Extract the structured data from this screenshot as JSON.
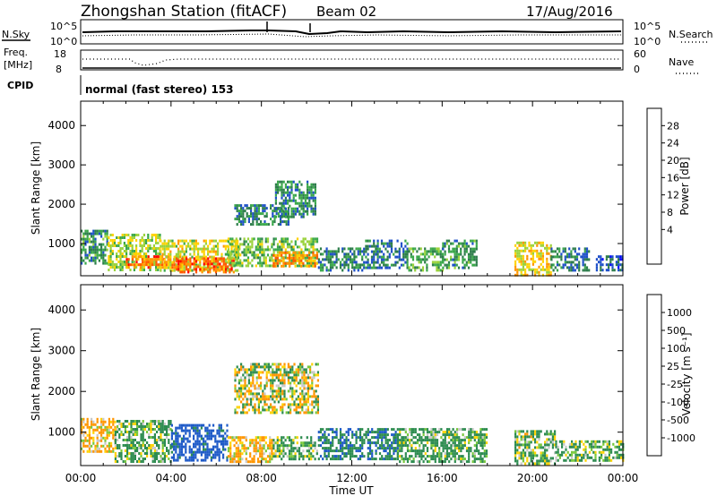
{
  "header": {
    "station": "Zhongshan Station (fitACF)",
    "beam": "Beam 02",
    "date": "17/Aug/2016"
  },
  "top_panels": {
    "nsky_label": "N.Sky",
    "nsky_ticks": [
      "10^5",
      "10^0"
    ],
    "nsearch_label": "N.Search",
    "nsearch_ticks": [
      "10^5",
      "10^0"
    ],
    "freq_label_1": "Freq.",
    "freq_label_2": "[MHz]",
    "freq_ticks": [
      "18",
      "8"
    ],
    "nave_label": "Nave",
    "nave_ticks": [
      "60",
      "0"
    ],
    "cpid_label": "CPID",
    "cpid_text": "normal (fast stereo) 153"
  },
  "chart_data": [
    {
      "type": "heatmap",
      "name": "power-panel",
      "ylabel": "Slant Range [km]",
      "xlabel": "",
      "ylim": [
        180,
        4620
      ],
      "xlim": [
        0,
        24
      ],
      "yticks": [
        "4000",
        "3000",
        "2000",
        "1000"
      ],
      "yticks_values": [
        4000,
        3000,
        2000,
        1000
      ],
      "colorbar": {
        "label": "Power [dB]",
        "ticks": [
          "28",
          "24",
          "20",
          "16",
          "12",
          "8",
          "4"
        ],
        "colors": [
          "#0000ff",
          "#1e50c8",
          "#2d7d4b",
          "#3aa84a",
          "#9bd23c",
          "#ffd200",
          "#ff9600",
          "#ff5a00",
          "#ff0000"
        ]
      },
      "regions": [
        {
          "t0": 0.0,
          "t1": 1.2,
          "r0": 500,
          "r1": 1350,
          "value": 12
        },
        {
          "t0": 1.2,
          "t1": 3.5,
          "r0": 300,
          "r1": 1250,
          "value": 18
        },
        {
          "t0": 2.0,
          "t1": 4.5,
          "r0": 380,
          "r1": 700,
          "value": 28
        },
        {
          "t0": 3.5,
          "t1": 7.0,
          "r0": 300,
          "r1": 1100,
          "value": 20
        },
        {
          "t0": 4.2,
          "t1": 6.8,
          "r0": 260,
          "r1": 650,
          "value": 30
        },
        {
          "t0": 6.5,
          "t1": 10.5,
          "r0": 400,
          "r1": 1150,
          "value": 16
        },
        {
          "t0": 8.5,
          "t1": 10.5,
          "r0": 400,
          "r1": 800,
          "value": 26
        },
        {
          "t0": 6.8,
          "t1": 9.2,
          "r0": 1500,
          "r1": 2000,
          "value": 10
        },
        {
          "t0": 8.6,
          "t1": 10.4,
          "r0": 1700,
          "r1": 2600,
          "value": 11
        },
        {
          "t0": 10.5,
          "t1": 12.5,
          "r0": 350,
          "r1": 900,
          "value": 10
        },
        {
          "t0": 12.5,
          "t1": 14.5,
          "r0": 350,
          "r1": 1100,
          "value": 9
        },
        {
          "t0": 14.5,
          "t1": 16.0,
          "r0": 300,
          "r1": 900,
          "value": 14
        },
        {
          "t0": 16.0,
          "t1": 17.5,
          "r0": 400,
          "r1": 1100,
          "value": 12
        },
        {
          "t0": 19.2,
          "t1": 20.8,
          "r0": 200,
          "r1": 1050,
          "value": 22
        },
        {
          "t0": 20.8,
          "t1": 22.5,
          "r0": 300,
          "r1": 900,
          "value": 9
        },
        {
          "t0": 22.8,
          "t1": 24.0,
          "r0": 300,
          "r1": 700,
          "value": 7
        }
      ]
    },
    {
      "type": "heatmap",
      "name": "velocity-panel",
      "ylabel": "Slant Range [km]",
      "xlabel": "Time UT",
      "ylim": [
        180,
        4620
      ],
      "xlim": [
        0,
        24
      ],
      "yticks": [
        "4000",
        "3000",
        "2000",
        "1000"
      ],
      "yticks_values": [
        4000,
        3000,
        2000,
        1000
      ],
      "xticks": [
        "00:00",
        "04:00",
        "08:00",
        "12:00",
        "16:00",
        "20:00",
        "00:00"
      ],
      "colorbar": {
        "label": "Velocity [m s⁻¹]",
        "ticks": [
          "1000",
          "500",
          "100",
          "25",
          "-25",
          "-100",
          "-500",
          "-1000"
        ],
        "colors": [
          "#ff0000",
          "#ff5a00",
          "#ff9600",
          "#ffd200",
          "#c8c8c8",
          "#78c83c",
          "#2d8c50",
          "#1e5ac8",
          "#0000ff"
        ]
      },
      "regions": [
        {
          "t0": 0.0,
          "t1": 1.5,
          "r0": 500,
          "r1": 1350,
          "value": -150
        },
        {
          "t0": 1.5,
          "t1": 4.0,
          "r0": 300,
          "r1": 1300,
          "value": 150
        },
        {
          "t0": 4.0,
          "t1": 6.5,
          "r0": 300,
          "r1": 1200,
          "value": 700
        },
        {
          "t0": 6.5,
          "t1": 8.5,
          "r0": 300,
          "r1": 900,
          "value": -150
        },
        {
          "t0": 8.5,
          "t1": 10.5,
          "r0": 350,
          "r1": 900,
          "value": 150
        },
        {
          "t0": 6.8,
          "t1": 10.5,
          "r0": 1500,
          "r1": 2700,
          "value": 0
        },
        {
          "t0": 10.5,
          "t1": 14.0,
          "r0": 350,
          "r1": 1100,
          "value": 400
        },
        {
          "t0": 14.0,
          "t1": 18.0,
          "r0": 300,
          "r1": 1100,
          "value": 200
        },
        {
          "t0": 19.2,
          "t1": 21.0,
          "r0": 200,
          "r1": 1050,
          "value": 120
        },
        {
          "t0": 21.0,
          "t1": 24.0,
          "r0": 300,
          "r1": 800,
          "value": 150
        }
      ]
    }
  ]
}
